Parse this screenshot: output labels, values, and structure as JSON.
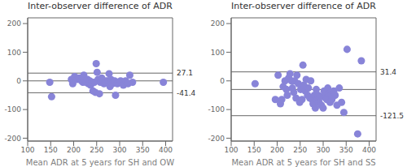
{
  "chart_data": [
    {
      "type": "scatter",
      "title": "Inter-observer difference of ADR",
      "xlabel": "Mean ADR at 5 years for SH and OW",
      "x": [
        148,
        152,
        195,
        198,
        202,
        207,
        212,
        217,
        220,
        222,
        224,
        227,
        230,
        232,
        235,
        237,
        240,
        242,
        245,
        247,
        249,
        251,
        253,
        256,
        258,
        261,
        264,
        266,
        268,
        270,
        272,
        275,
        277,
        279,
        281,
        284,
        287,
        289,
        291,
        295,
        298,
        302,
        308,
        313,
        318,
        322,
        328,
        395
      ],
      "values": [
        -5,
        -55,
        5,
        -10,
        15,
        5,
        10,
        0,
        -5,
        20,
        5,
        -5,
        5,
        -10,
        0,
        -15,
        -5,
        -35,
        -5,
        -40,
        60,
        30,
        5,
        -45,
        -5,
        10,
        0,
        -10,
        -5,
        0,
        -5,
        0,
        25,
        -20,
        5,
        -10,
        -5,
        0,
        -50,
        -10,
        -5,
        0,
        -15,
        0,
        -10,
        20,
        -5,
        -5
      ],
      "xlim": [
        100,
        415
      ],
      "ylim": [
        -210,
        220
      ],
      "xticks": [
        100,
        150,
        200,
        250,
        300,
        350,
        400
      ],
      "yticks": [
        -200,
        -100,
        0,
        100,
        200
      ],
      "reference_lines": [
        0,
        27.1,
        -41.4
      ],
      "annotations": [
        {
          "text": "27.1",
          "y": 27.1
        },
        {
          "text": "-41.4",
          "y": -41.4
        }
      ]
    },
    {
      "type": "scatter",
      "title": "Inter-observer difference of ADR",
      "xlabel": "Mean ADR at 5 years for SH and SS",
      "x": [
        152,
        196,
        202,
        207,
        210,
        213,
        217,
        220,
        222,
        225,
        228,
        231,
        233,
        236,
        238,
        241,
        243,
        246,
        249,
        251,
        254,
        256,
        258,
        261,
        263,
        266,
        268,
        271,
        273,
        276,
        278,
        281,
        283,
        285,
        287,
        289,
        291,
        293,
        296,
        298,
        300,
        302,
        304,
        306,
        308,
        310,
        312,
        315,
        317,
        319,
        321,
        323,
        326,
        330,
        335,
        340,
        345,
        352,
        383,
        375
      ],
      "values": [
        -10,
        -65,
        20,
        -80,
        -65,
        -20,
        0,
        -30,
        -50,
        10,
        25,
        0,
        -25,
        -40,
        0,
        -60,
        20,
        -10,
        -75,
        -30,
        -65,
        55,
        -15,
        -35,
        5,
        -50,
        -25,
        -60,
        0,
        -65,
        -80,
        -50,
        -95,
        -30,
        -65,
        -50,
        -75,
        -55,
        -85,
        -55,
        -95,
        -35,
        -50,
        -60,
        -65,
        -25,
        -45,
        -75,
        -50,
        -65,
        -55,
        -35,
        -50,
        -85,
        -25,
        -75,
        -110,
        110,
        70,
        -185
      ],
      "xlim": [
        100,
        415
      ],
      "ylim": [
        -210,
        220
      ],
      "xticks": [
        100,
        150,
        200,
        250,
        300,
        350,
        400
      ],
      "yticks": [
        -200,
        -100,
        0,
        100,
        200
      ],
      "reference_lines": [
        -30,
        31.4,
        -121.5
      ],
      "annotations": [
        {
          "text": "31.4",
          "y": 31.4
        },
        {
          "text": "-121.5",
          "y": -121.5
        }
      ]
    }
  ]
}
